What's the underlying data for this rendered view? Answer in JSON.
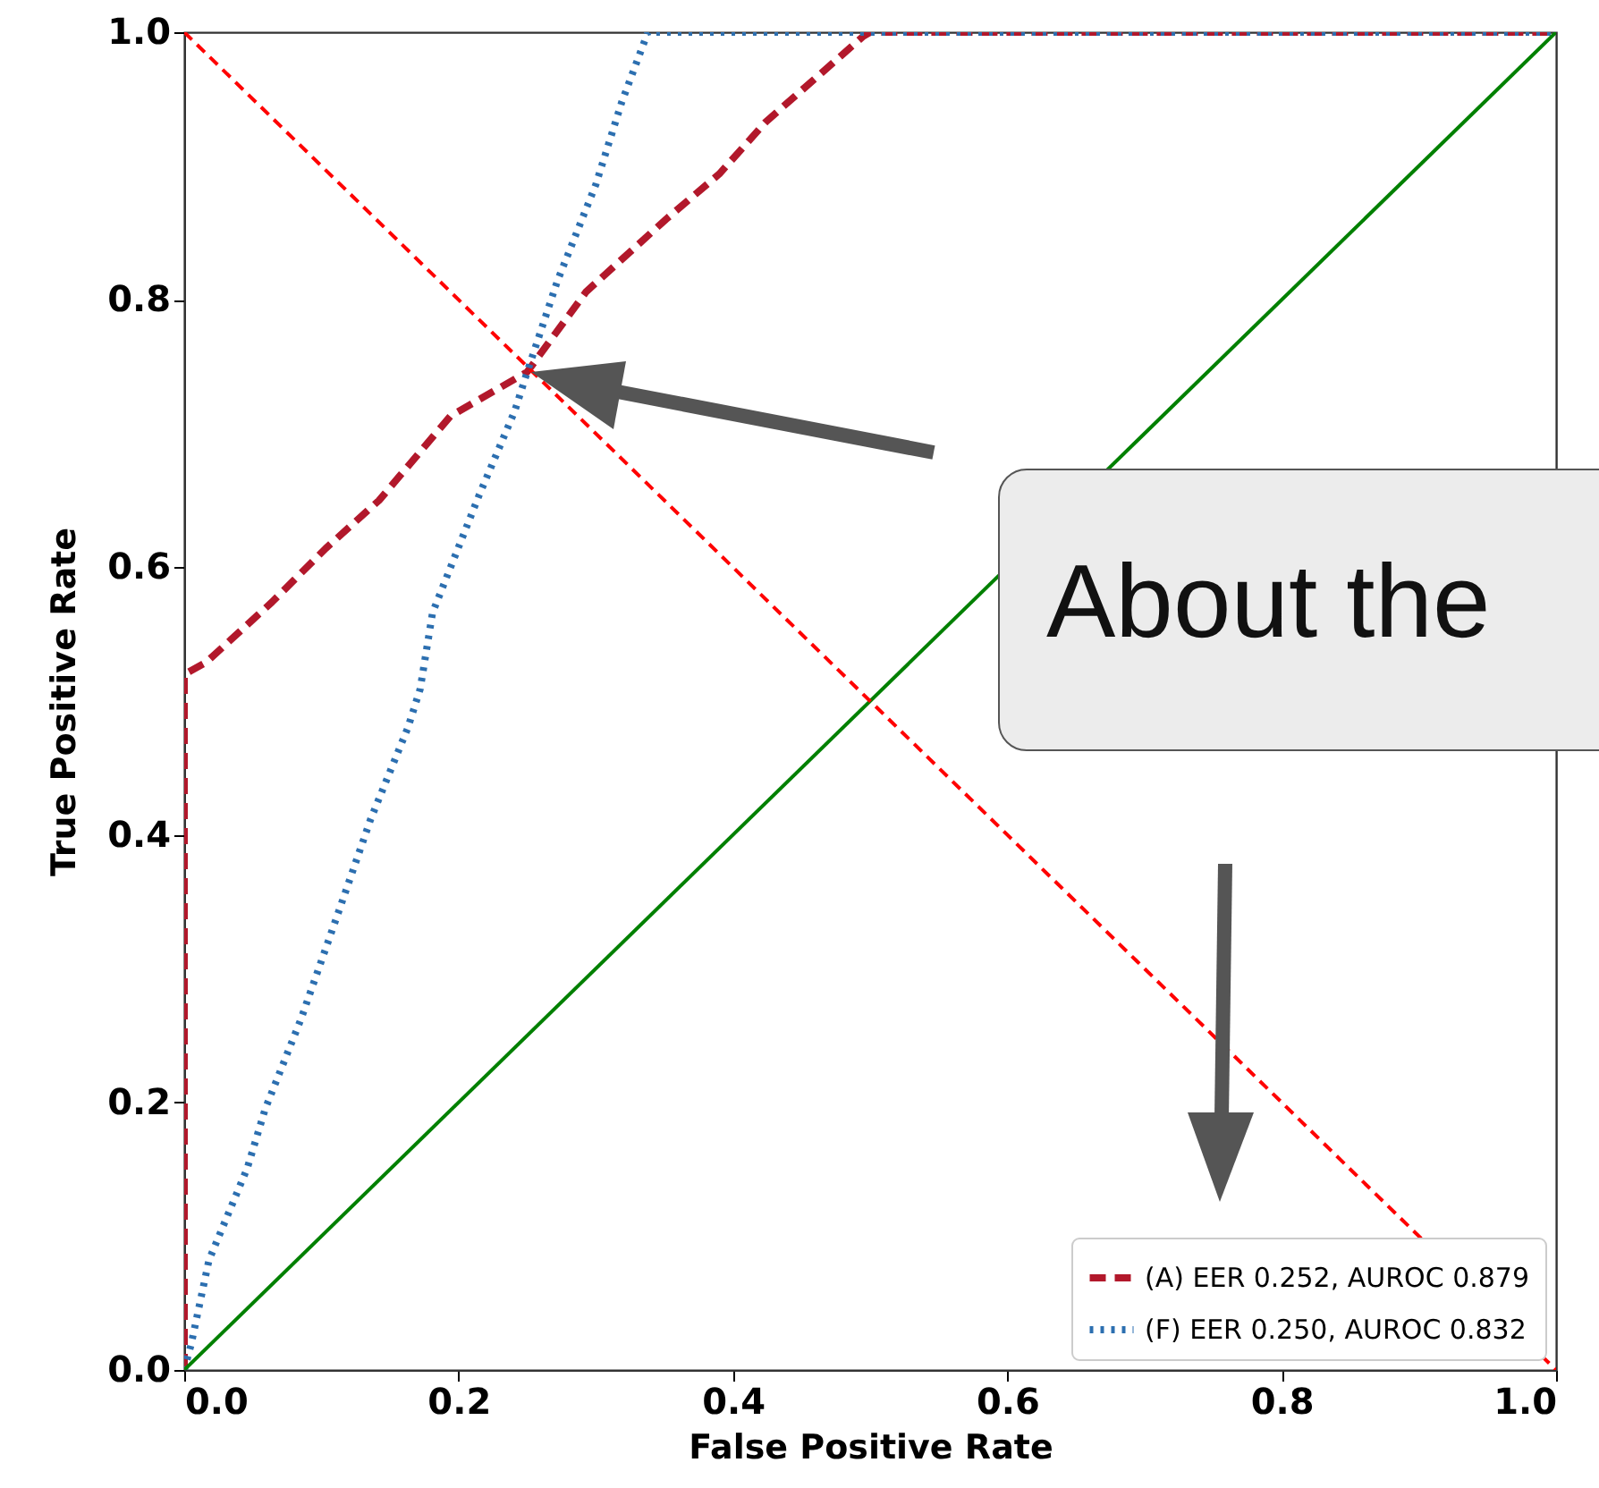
{
  "chart_data": {
    "type": "line",
    "xlabel": "False Positive Rate",
    "ylabel": "True Positive Rate",
    "xlim": [
      0,
      1
    ],
    "ylim": [
      0,
      1
    ],
    "xticks": [
      {
        "value": 0,
        "label": "0.0"
      },
      {
        "value": 0.2,
        "label": "0.2"
      },
      {
        "value": 0.4,
        "label": "0.4"
      },
      {
        "value": 0.6,
        "label": "0.6"
      },
      {
        "value": 0.8,
        "label": "0.8"
      },
      {
        "value": 1,
        "label": "1.0"
      }
    ],
    "yticks": [
      {
        "value": 0,
        "label": "0.0"
      },
      {
        "value": 0.2,
        "label": "0.2"
      },
      {
        "value": 0.4,
        "label": "0.4"
      },
      {
        "value": 0.6,
        "label": "0.6"
      },
      {
        "value": 0.8,
        "label": "0.8"
      },
      {
        "value": 1,
        "label": "1.0"
      }
    ],
    "legend": "bottom right",
    "annotations": [
      "About the"
    ],
    "series": [
      {
        "name": "(A) EER 0.252, AUROC 0.879",
        "color": "#b2182b",
        "line_style": "dashed",
        "x": [
          0,
          0,
          0.016,
          0.064,
          0.103,
          0.142,
          0.194,
          0.25,
          0.293,
          0.351,
          0.39,
          0.424,
          0.495,
          0.5,
          1
        ],
        "values": [
          0,
          0.52,
          0.529,
          0.574,
          0.614,
          0.65,
          0.713,
          0.746,
          0.806,
          0.86,
          0.894,
          0.933,
          0.997,
          1,
          1
        ]
      },
      {
        "name": "(F) EER 0.250, AUROC 0.832",
        "color": "#2c6fb0",
        "line_style": "dotted",
        "x": [
          0,
          0.005,
          0.018,
          0.046,
          0.059,
          0.085,
          0.111,
          0.136,
          0.163,
          0.172,
          0.181,
          0.215,
          0.241,
          0.25,
          0.272,
          0.3,
          0.319,
          0.338,
          1
        ],
        "values": [
          0,
          0.019,
          0.082,
          0.151,
          0.195,
          0.262,
          0.338,
          0.412,
          0.48,
          0.509,
          0.566,
          0.654,
          0.717,
          0.746,
          0.814,
          0.886,
          0.948,
          1,
          1
        ]
      },
      {
        "color": "#008000",
        "line_style": "solid",
        "x": [
          0,
          1
        ],
        "values": [
          0,
          1
        ]
      },
      {
        "color": "#ff0000",
        "line_style": "dashed",
        "x": [
          0,
          1
        ],
        "values": [
          1,
          0
        ]
      }
    ]
  }
}
